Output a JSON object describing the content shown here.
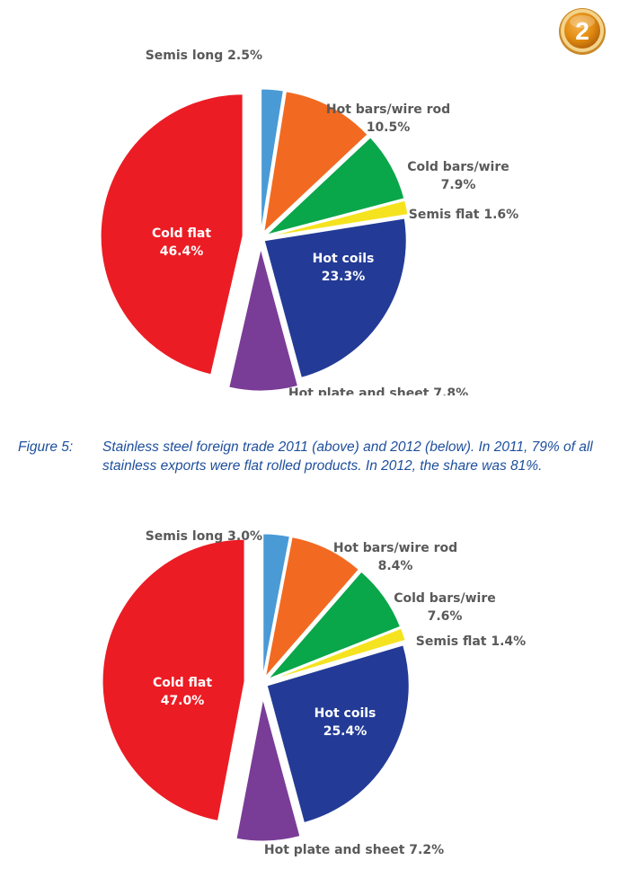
{
  "badge": {
    "label": "2"
  },
  "caption": {
    "figure": "Figure 5:",
    "text": "Stainless steel foreign trade 2011 (above) and 2012 (below). In 2011, 79% of all stainless exports were flat rolled products. In 2012, the share was 81%."
  },
  "chart_data": [
    {
      "type": "pie",
      "title": "",
      "slices": [
        {
          "label": "Semis long",
          "value": 2.5,
          "value_text": "2.5%",
          "color": "#4a9ad6"
        },
        {
          "label": "Hot bars/wire rod",
          "value": 10.5,
          "value_text": "10.5%",
          "color": "#f26a21"
        },
        {
          "label": "Cold bars/wire",
          "value": 7.9,
          "value_text": "7.9%",
          "color": "#0aa64a"
        },
        {
          "label": "Semis flat",
          "value": 1.6,
          "value_text": "1.6%",
          "color": "#f5e31f"
        },
        {
          "label": "Hot coils",
          "value": 23.3,
          "value_text": "23.3%",
          "color": "#233b96"
        },
        {
          "label": "Hot plate and sheet",
          "value": 7.8,
          "value_text": "7.8%",
          "color": "#7a3d97"
        },
        {
          "label": "Cold flat",
          "value": 46.4,
          "value_text": "46.4%",
          "color": "#ec1c24"
        }
      ]
    },
    {
      "type": "pie",
      "title": "",
      "slices": [
        {
          "label": "Semis long",
          "value": 3.0,
          "value_text": "3.0%",
          "color": "#4a9ad6"
        },
        {
          "label": "Hot bars/wire rod",
          "value": 8.4,
          "value_text": "8.4%",
          "color": "#f26a21"
        },
        {
          "label": "Cold bars/wire",
          "value": 7.6,
          "value_text": "7.6%",
          "color": "#0aa64a"
        },
        {
          "label": "Semis flat",
          "value": 1.4,
          "value_text": "1.4%",
          "color": "#f5e31f"
        },
        {
          "label": "Hot coils",
          "value": 25.4,
          "value_text": "25.4%",
          "color": "#233b96"
        },
        {
          "label": "Hot plate and sheet",
          "value": 7.2,
          "value_text": "7.2%",
          "color": "#7a3d97"
        },
        {
          "label": "Cold flat",
          "value": 47.0,
          "value_text": "47.0%",
          "color": "#ec1c24"
        }
      ]
    }
  ]
}
